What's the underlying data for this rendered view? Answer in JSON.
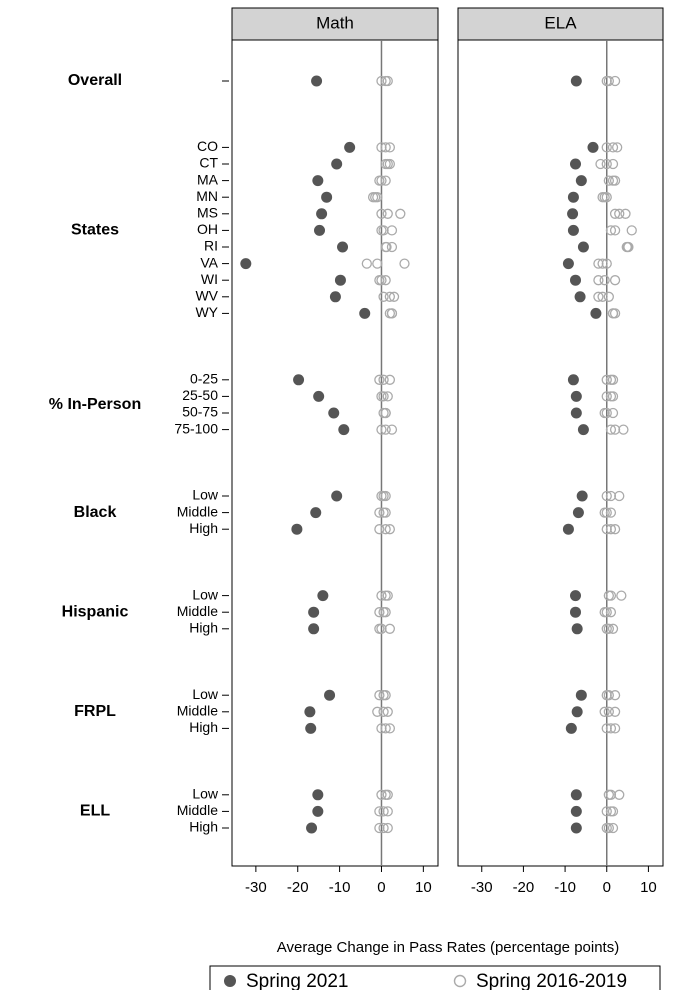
{
  "chart_data": {
    "type": "dot",
    "x_label": "Average Change in Pass Rates (percentage points)",
    "xlim": [
      -35.7,
      13.5
    ],
    "xticks": [
      -30,
      -20,
      -10,
      0,
      10
    ],
    "legend": [
      {
        "name": "Spring 2021",
        "color": "#555555",
        "filled": true
      },
      {
        "name": "Spring 2016-2019",
        "color": "#aaaaaa",
        "filled": false
      }
    ],
    "groups": [
      {
        "name": "Overall",
        "categories": [
          null
        ]
      },
      {
        "name": "States",
        "categories": [
          "CO",
          "CT",
          "MA",
          "MN",
          "MS",
          "OH",
          "RI",
          "VA",
          "WI",
          "WV",
          "WY"
        ]
      },
      {
        "name": "% In-Person",
        "categories": [
          "0-25",
          "25-50",
          "50-75",
          "75-100"
        ]
      },
      {
        "name": "Black",
        "categories": [
          "Low",
          "Middle",
          "High"
        ]
      },
      {
        "name": "Hispanic",
        "categories": [
          "Low",
          "Middle",
          "High"
        ]
      },
      {
        "name": "FRPL",
        "categories": [
          "Low",
          "Middle",
          "High"
        ]
      },
      {
        "name": "ELL",
        "categories": [
          "Low",
          "Middle",
          "High"
        ]
      }
    ],
    "panels": [
      {
        "title": "Math",
        "series": [
          {
            "values": [
              -15.5,
              -7.6,
              -10.7,
              -15.2,
              -13.1,
              -14.3,
              -14.8,
              -9.3,
              -32.4,
              -9.8,
              -11,
              -4,
              -19.8,
              -15,
              -11.4,
              -9,
              -10.7,
              -15.7,
              -20.2,
              -14,
              -16.2,
              -16.2,
              -12.4,
              -17.1,
              -16.9,
              -15.2,
              -15.2,
              -16.7
            ]
          },
          {
            "values": [
              [
                0,
                1,
                1.5
              ],
              [
                0,
                1,
                2
              ],
              [
                1,
                1.5,
                2
              ],
              [
                -0.5,
                0,
                1
              ],
              [
                -2,
                -1.5,
                -1
              ],
              [
                0,
                1.5,
                4.5
              ],
              [
                0,
                0.5,
                2.5
              ],
              [
                1,
                1.2,
                2.5
              ],
              [
                -3.5,
                -1,
                5.5
              ],
              [
                -0.5,
                0,
                1
              ],
              [
                0.5,
                2,
                3
              ],
              [
                2,
                2.5,
                2.5
              ],
              [
                -0.5,
                0.5,
                2
              ],
              [
                0,
                0.5,
                1.5
              ],
              [
                0.5,
                1,
                1
              ],
              [
                0,
                1,
                2.5
              ],
              [
                0,
                0.5,
                1
              ],
              [
                -0.5,
                0.5,
                1
              ],
              [
                -0.5,
                1,
                2
              ],
              [
                0,
                1,
                1.5
              ],
              [
                -0.5,
                0.5,
                1
              ],
              [
                -0.5,
                0,
                2
              ],
              [
                -0.5,
                0.5,
                1
              ],
              [
                -1,
                0.5,
                1.5
              ],
              [
                0,
                1,
                2
              ],
              [
                0,
                1,
                1.5
              ],
              [
                -0.5,
                0.5,
                1.5
              ],
              [
                -0.5,
                0.5,
                1.5
              ]
            ]
          }
        ]
      },
      {
        "title": "ELA",
        "series": [
          {
            "values": [
              -7.3,
              -3.3,
              -7.5,
              -6.1,
              -8,
              -8.2,
              -8,
              -5.6,
              -9.2,
              -7.5,
              -6.4,
              -2.6,
              -8,
              -7.3,
              -7.3,
              -5.6,
              -5.9,
              -6.8,
              -9.2,
              -7.5,
              -7.5,
              -7.1,
              -6.1,
              -7.1,
              -8.5,
              -7.3,
              -7.3,
              -7.3
            ]
          },
          {
            "values": [
              [
                0,
                0.5,
                2
              ],
              [
                0,
                1.5,
                2.5
              ],
              [
                -1.5,
                0,
                1.5
              ],
              [
                0.5,
                1.5,
                2
              ],
              [
                -1,
                -0.5,
                0
              ],
              [
                2,
                3,
                4.5
              ],
              [
                1,
                2,
                6
              ],
              [
                4.8,
                5,
                5.2
              ],
              [
                -2,
                -1,
                0
              ],
              [
                -2,
                -0.5,
                2
              ],
              [
                -2,
                -1,
                0.5
              ],
              [
                1.5,
                1.5,
                2
              ],
              [
                0,
                1,
                1.5
              ],
              [
                0,
                1,
                1.5
              ],
              [
                -0.5,
                0,
                1.5
              ],
              [
                1,
                2,
                4
              ],
              [
                0,
                1,
                3
              ],
              [
                -0.5,
                0,
                1
              ],
              [
                0,
                1,
                2
              ],
              [
                0.5,
                1,
                3.5
              ],
              [
                -0.5,
                0,
                1
              ],
              [
                0,
                0.5,
                1.5
              ],
              [
                0,
                0.5,
                2
              ],
              [
                -0.5,
                0.5,
                2
              ],
              [
                0,
                1,
                2
              ],
              [
                0.5,
                1,
                3
              ],
              [
                0,
                1,
                1.5
              ],
              [
                0,
                0.5,
                1.5
              ]
            ]
          }
        ]
      }
    ]
  }
}
